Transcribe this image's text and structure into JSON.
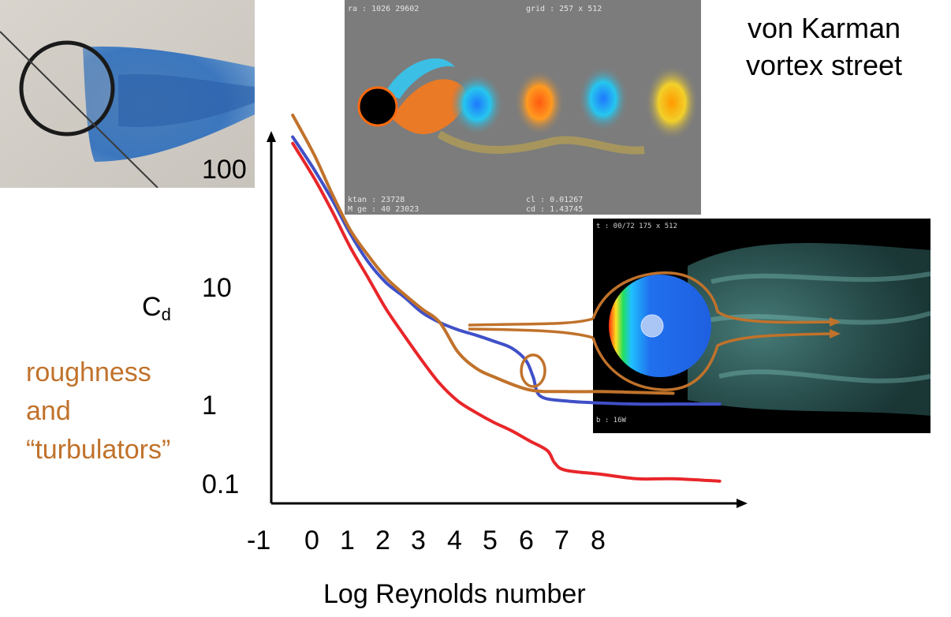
{
  "labels": {
    "vortex_line1": "von Karman",
    "vortex_line2": "vortex street",
    "roughness_line1": "roughness",
    "roughness_line2": "and",
    "roughness_line3": "“turbulators”",
    "ylabel_main": "C",
    "ylabel_sub": "d",
    "xlabel": "Log Reynolds number"
  },
  "colors": {
    "orange": "#c0722b",
    "blue": "#4050c8",
    "red": "#e8262a",
    "panel_gray": "#7c7c7c",
    "panel_black": "#000000"
  },
  "chart_data": {
    "type": "line",
    "xlabel": "Log Reynolds number",
    "ylabel": "Cd",
    "yscale": "log",
    "xlim": [
      -1,
      11.5
    ],
    "ylim": [
      0.1,
      130
    ],
    "x_ticks": [
      "-1",
      "0",
      "1",
      "2",
      "3",
      "4",
      "5",
      "6",
      "7",
      "8"
    ],
    "y_ticks": [
      "100",
      "10",
      "1",
      "0.1"
    ],
    "grid": false,
    "series": [
      {
        "color": "#4050c8",
        "x": [
          -0.6,
          0,
          0.5,
          1,
          1.5,
          2,
          2.5,
          3,
          3.5,
          4,
          4.5,
          5,
          5.5,
          5.9,
          6.1,
          6.3,
          7,
          8,
          9,
          10,
          11.3
        ],
        "y": [
          85,
          45,
          25,
          13,
          7.5,
          5,
          3.8,
          2.8,
          2.3,
          2.0,
          1.8,
          1.6,
          1.4,
          1.1,
          0.8,
          0.55,
          0.5,
          0.48,
          0.47,
          0.47,
          0.47
        ]
      },
      {
        "color": "#e8262a",
        "x": [
          -0.6,
          0,
          0.5,
          1,
          1.5,
          2,
          2.5,
          3,
          3.5,
          4,
          4.5,
          5,
          5.5,
          6,
          6.5,
          6.7,
          7,
          8,
          9,
          10,
          11.3
        ],
        "y": [
          75,
          38,
          20,
          10,
          5.5,
          3,
          1.8,
          1.1,
          0.7,
          0.5,
          0.4,
          0.33,
          0.28,
          0.23,
          0.19,
          0.15,
          0.13,
          0.12,
          0.11,
          0.11,
          0.105
        ]
      },
      {
        "color": "#c0722b",
        "x": [
          -0.6,
          0,
          0.5,
          1,
          1.5,
          2,
          2.5,
          3,
          3.5,
          4,
          4.5,
          5,
          6,
          7,
          8,
          9,
          10
        ],
        "y": [
          130,
          60,
          28,
          14,
          8.5,
          5.5,
          4.0,
          3.0,
          2.3,
          1.3,
          0.95,
          0.8,
          0.62,
          0.6,
          0.6,
          0.59,
          0.58
        ]
      }
    ],
    "annotation": {
      "shape": "ellipse",
      "x": 6.1,
      "y": 0.9,
      "color": "#c0722b"
    }
  }
}
